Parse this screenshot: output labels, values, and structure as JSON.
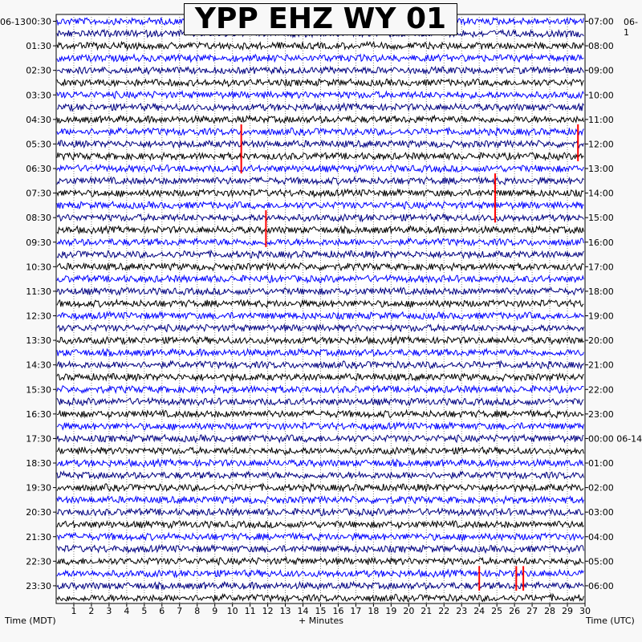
{
  "chart_data": {
    "type": "line",
    "title": "YPP EHZ WY 01",
    "start_date_left": "06-13",
    "start_date_right": "06-1",
    "left_axis_label": "Time (MDT)",
    "right_axis_label": "Time (UTC)",
    "xlabel": "+ Minutes",
    "x_ticks": [
      "1",
      "2",
      "3",
      "4",
      "5",
      "6",
      "7",
      "8",
      "9",
      "10",
      "11",
      "12",
      "13",
      "14",
      "15",
      "16",
      "17",
      "18",
      "19",
      "20",
      "21",
      "22",
      "23",
      "24",
      "25",
      "26",
      "27",
      "28",
      "29",
      "30"
    ],
    "xlim": [
      0,
      30
    ],
    "rows_count": 48,
    "left_ticks": [
      "00:30",
      "01:30",
      "02:30",
      "03:30",
      "04:30",
      "05:30",
      "06:30",
      "07:30",
      "08:30",
      "09:30",
      "10:30",
      "11:30",
      "12:30",
      "13:30",
      "14:30",
      "15:30",
      "16:30",
      "17:30",
      "18:30",
      "19:30",
      "20:30",
      "21:30",
      "22:30",
      "23:30"
    ],
    "right_ticks": [
      "07:00",
      "08:00",
      "09:00",
      "10:00",
      "11:00",
      "12:00",
      "13:00",
      "14:00",
      "15:00",
      "16:00",
      "17:00",
      "18:00",
      "19:00",
      "20:00",
      "21:00",
      "22:00",
      "23:00",
      "00:00 06-14",
      "01:00",
      "02:00",
      "03:00",
      "04:00",
      "05:00",
      "06:00"
    ],
    "trace_colors": [
      "#0000ff",
      "#000080",
      "#000000"
    ],
    "event_color": "#ff0000",
    "grid": "dotted vertical lines at each minute",
    "events": [
      {
        "row": 9,
        "minute": 10.5,
        "rows_span": 4,
        "color": "red"
      },
      {
        "row": 9,
        "minute": 29.6,
        "rows_span": 3,
        "color": "red"
      },
      {
        "row": 13,
        "minute": 24.9,
        "rows_span": 4,
        "color": "red"
      },
      {
        "row": 16,
        "minute": 11.9,
        "rows_span": 3,
        "color": "red"
      },
      {
        "row": 45,
        "minute": 24.0,
        "rows_span": 2,
        "color": "red"
      },
      {
        "row": 45,
        "minute": 26.1,
        "rows_span": 2,
        "color": "red"
      },
      {
        "row": 45,
        "minute": 26.5,
        "rows_span": 2,
        "color": "red"
      }
    ]
  }
}
